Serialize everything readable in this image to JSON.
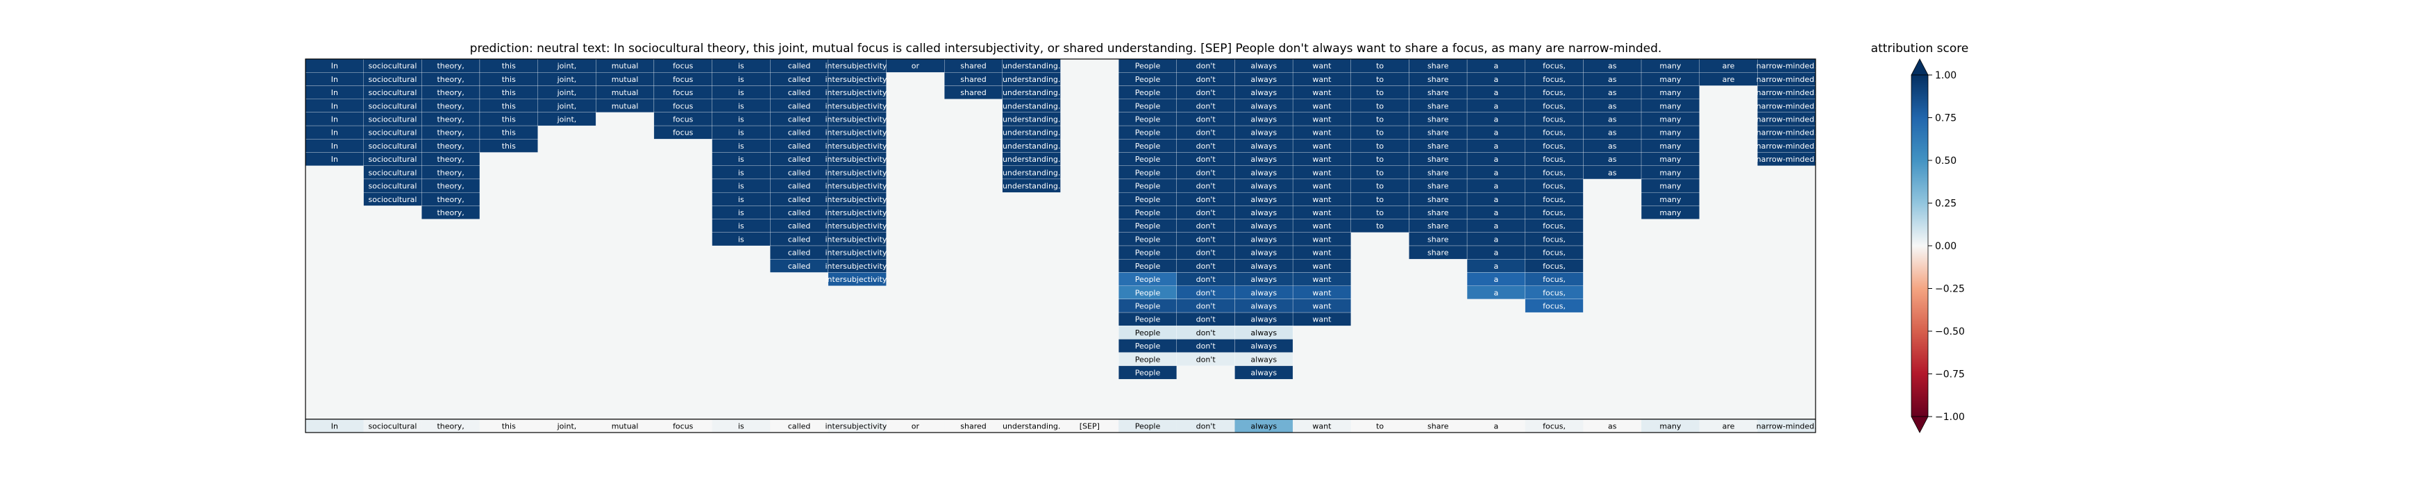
{
  "chart_data": {
    "type": "heatmap",
    "title": "prediction:  neutral     text:  In sociocultural theory, this joint, mutual focus is called intersubjectivity, or shared understanding. [SEP] People don't always want to share a focus, as many are narrow-minded.",
    "tokens": [
      "In",
      "sociocultural",
      "theory,",
      "this",
      "joint,",
      "mutual",
      "focus",
      "is",
      "called",
      "intersubjectivity,",
      "or",
      "shared",
      "understanding.",
      "[SEP]",
      "People",
      "don't",
      "always",
      "want",
      "to",
      "share",
      "a",
      "focus,",
      "as",
      "many",
      "are",
      "narrow-minded."
    ],
    "row_starts": [
      0,
      0,
      0,
      0,
      0,
      0,
      0,
      0,
      1,
      1,
      1,
      2,
      7,
      7,
      7,
      8,
      8,
      8,
      9,
      9,
      9,
      9,
      9,
      9,
      14,
      14,
      14,
      14
    ],
    "row_ends": [
      25,
      25,
      25,
      25,
      25,
      25,
      25,
      25,
      23,
      23,
      23,
      23,
      22,
      22,
      22,
      22,
      22,
      22,
      22,
      22,
      22,
      22,
      22,
      22,
      22,
      22,
      22,
      22
    ],
    "rows": [
      [
        0.95,
        0.95,
        0.95,
        0.95,
        0.95,
        0.95,
        0.95,
        0.95,
        0.95,
        0.95,
        0.95,
        0.95,
        0.95,
        0.0,
        0.95,
        0.95,
        0.95,
        0.95,
        0.95,
        0.95,
        0.95,
        0.95,
        0.95,
        0.95,
        0.95,
        0.95
      ],
      [
        0.95,
        0.95,
        0.95,
        0.95,
        0.95,
        0.95,
        0.95,
        0.95,
        0.95,
        0.95,
        0.0,
        0.95,
        0.95,
        0.0,
        0.95,
        0.95,
        0.95,
        0.95,
        0.95,
        0.95,
        0.95,
        0.95,
        0.95,
        0.95,
        0.95,
        0.95
      ],
      [
        0.95,
        0.95,
        0.95,
        0.95,
        0.95,
        0.95,
        0.95,
        0.95,
        0.95,
        0.95,
        0.0,
        0.95,
        0.95,
        0.0,
        0.95,
        0.95,
        0.95,
        0.95,
        0.95,
        0.95,
        0.95,
        0.95,
        0.95,
        0.95,
        0.0,
        0.95
      ],
      [
        0.95,
        0.95,
        0.95,
        0.95,
        0.95,
        0.95,
        0.95,
        0.95,
        0.95,
        0.95,
        0.0,
        0.0,
        0.95,
        0.0,
        0.95,
        0.95,
        0.95,
        0.95,
        0.95,
        0.95,
        0.95,
        0.95,
        0.95,
        0.95,
        0.0,
        0.95
      ],
      [
        0.95,
        0.95,
        0.95,
        0.95,
        0.95,
        0.0,
        0.95,
        0.95,
        0.95,
        0.95,
        0.0,
        0.0,
        0.95,
        0.0,
        0.95,
        0.95,
        0.95,
        0.95,
        0.95,
        0.95,
        0.95,
        0.95,
        0.95,
        0.95,
        0.0,
        0.95
      ],
      [
        0.95,
        0.95,
        0.95,
        0.95,
        0.0,
        0.0,
        0.95,
        0.95,
        0.95,
        0.95,
        0.0,
        0.0,
        0.95,
        0.0,
        0.95,
        0.95,
        0.95,
        0.95,
        0.95,
        0.95,
        0.95,
        0.95,
        0.95,
        0.95,
        0.0,
        0.95
      ],
      [
        0.95,
        0.95,
        0.95,
        0.95,
        0.0,
        0.0,
        0.0,
        0.95,
        0.95,
        0.95,
        0.0,
        0.0,
        0.95,
        0.0,
        0.95,
        0.95,
        0.95,
        0.95,
        0.95,
        0.95,
        0.95,
        0.95,
        0.95,
        0.95,
        0.0,
        0.95
      ],
      [
        0.95,
        0.95,
        0.95,
        0.0,
        0.0,
        0.0,
        0.0,
        0.95,
        0.95,
        0.95,
        0.0,
        0.0,
        0.95,
        0.0,
        0.95,
        0.95,
        0.95,
        0.95,
        0.95,
        0.95,
        0.95,
        0.95,
        0.95,
        0.95,
        0.0,
        0.95
      ],
      [
        0.0,
        0.95,
        0.95,
        0.0,
        0.0,
        0.0,
        0.0,
        0.95,
        0.95,
        0.95,
        0.0,
        0.0,
        0.95,
        0.0,
        0.95,
        0.95,
        0.95,
        0.95,
        0.95,
        0.95,
        0.95,
        0.95,
        0.95,
        0.95,
        0.0,
        0.95
      ],
      [
        0.0,
        0.95,
        0.95,
        0.0,
        0.0,
        0.0,
        0.0,
        0.95,
        0.95,
        0.95,
        0.0,
        0.0,
        0.95,
        0.0,
        0.95,
        0.95,
        0.95,
        0.95,
        0.95,
        0.95,
        0.95,
        0.95,
        0.0,
        0.95,
        0.0,
        0.95
      ],
      [
        0.0,
        0.95,
        0.95,
        0.0,
        0.0,
        0.0,
        0.0,
        0.95,
        0.95,
        0.95,
        0.0,
        0.0,
        0.0,
        0.0,
        0.95,
        0.95,
        0.95,
        0.95,
        0.95,
        0.95,
        0.95,
        0.95,
        0.0,
        0.95,
        0.0,
        0.95
      ],
      [
        0.0,
        0.0,
        0.95,
        0.0,
        0.0,
        0.0,
        0.0,
        0.95,
        0.95,
        0.95,
        0.0,
        0.0,
        0.0,
        0.0,
        0.95,
        0.95,
        0.95,
        0.95,
        0.95,
        0.95,
        0.95,
        0.95,
        0.0,
        0.95,
        0.0,
        0.95
      ],
      [
        0.0,
        0.0,
        0.0,
        0.0,
        0.0,
        0.0,
        0.0,
        0.95,
        0.95,
        0.95,
        0.0,
        0.0,
        0.0,
        0.0,
        0.95,
        0.95,
        0.95,
        0.95,
        0.95,
        0.95,
        0.95,
        0.95,
        0.0,
        0.95,
        0.0,
        0.95
      ],
      [
        0.0,
        0.0,
        0.0,
        0.0,
        0.0,
        0.0,
        0.0,
        0.95,
        0.95,
        0.95,
        0.0,
        0.0,
        0.0,
        0.0,
        0.95,
        0.95,
        0.95,
        0.95,
        0.0,
        0.95,
        0.95,
        0.95,
        0.0,
        0.95,
        0.0,
        0.95
      ],
      [
        0.0,
        0.0,
        0.0,
        0.0,
        0.0,
        0.0,
        0.0,
        0.0,
        0.95,
        0.95,
        0.0,
        0.0,
        0.0,
        0.0,
        0.95,
        0.95,
        0.95,
        0.95,
        0.0,
        0.95,
        0.95,
        0.95,
        0.0,
        0.95,
        0.0,
        0.95
      ],
      [
        0.0,
        0.0,
        0.0,
        0.0,
        0.0,
        0.0,
        0.0,
        0.0,
        0.9,
        0.95,
        0.0,
        0.0,
        0.0,
        0.0,
        0.95,
        0.95,
        0.95,
        0.95,
        0.0,
        0.0,
        0.9,
        0.95,
        0.0,
        0.95,
        0.0,
        0.95
      ],
      [
        0.0,
        0.0,
        0.0,
        0.0,
        0.0,
        0.0,
        0.0,
        0.0,
        0.0,
        0.8,
        0.0,
        0.0,
        0.0,
        0.0,
        0.7,
        0.9,
        0.9,
        0.9,
        0.0,
        0.0,
        0.75,
        0.8,
        0.0,
        0.75,
        0.0,
        0.95
      ],
      [
        0.0,
        0.0,
        0.0,
        0.0,
        0.0,
        0.0,
        0.0,
        0.0,
        0.0,
        0.0,
        0.0,
        0.0,
        0.0,
        0.0,
        0.6,
        0.8,
        0.8,
        0.8,
        0.0,
        0.0,
        0.65,
        0.7,
        0.0,
        0.7,
        0.0,
        0.8
      ],
      [
        0.0,
        0.0,
        0.0,
        0.0,
        0.0,
        0.0,
        0.0,
        0.0,
        0.0,
        0.0,
        0.0,
        0.0,
        0.0,
        0.0,
        0.85,
        0.85,
        0.85,
        0.85,
        0.0,
        0.0,
        0.0,
        0.75,
        0.0,
        0.8,
        0.0,
        0.85
      ],
      [
        0.0,
        0.0,
        0.0,
        0.0,
        0.0,
        0.0,
        0.0,
        0.0,
        0.0,
        0.0,
        0.0,
        0.0,
        0.0,
        0.0,
        0.95,
        0.95,
        0.95,
        0.95,
        0.0,
        0.0,
        0.0,
        0.0,
        0.0,
        0.95,
        0.0,
        0.95
      ],
      [
        0.0,
        0.0,
        0.0,
        0.0,
        0.0,
        0.0,
        0.0,
        0.0,
        0.0,
        0.0,
        0.0,
        0.0,
        0.0,
        0.0,
        0.08,
        0.08,
        0.08,
        0.0,
        0.0,
        0.0,
        0.0,
        0.0,
        0.0,
        0.1,
        0.0,
        0.08
      ],
      [
        0.0,
        0.0,
        0.0,
        0.0,
        0.0,
        0.0,
        0.0,
        0.0,
        0.0,
        0.0,
        0.0,
        0.0,
        0.0,
        0.0,
        0.95,
        0.95,
        0.95,
        0.0,
        0.0,
        0.0,
        0.0,
        0.0,
        0.0,
        0.95,
        0.0,
        0.0
      ],
      [
        0.0,
        0.0,
        0.0,
        0.0,
        0.0,
        0.0,
        0.0,
        0.0,
        0.0,
        0.0,
        0.0,
        0.0,
        0.0,
        0.0,
        0.05,
        0.05,
        0.05,
        0.0,
        0.0,
        0.0,
        0.0,
        0.0,
        0.0,
        0.0,
        0.0,
        0.0
      ],
      [
        0.0,
        0.0,
        0.0,
        0.0,
        0.0,
        0.0,
        0.0,
        0.0,
        0.0,
        0.0,
        0.0,
        0.0,
        0.0,
        0.0,
        0.95,
        0.0,
        0.95,
        0.0,
        0.0,
        0.0,
        0.0,
        0.0,
        0.0,
        0.0,
        0.0,
        0.0
      ],
      [
        0.0,
        0.0,
        0.0,
        0.0,
        0.0,
        0.0,
        0.0,
        0.0,
        0.0,
        0.0,
        0.0,
        0.0,
        0.0,
        0.0,
        0.0,
        0.0,
        0.0,
        0.0,
        0.0,
        0.0,
        0.0,
        0.0,
        0.0,
        0.0,
        0.0,
        0.0
      ],
      [
        0.0,
        0.0,
        0.0,
        0.0,
        0.0,
        0.0,
        0.0,
        0.0,
        0.0,
        0.0,
        0.0,
        0.0,
        0.0,
        0.0,
        0.0,
        0.0,
        0.0,
        0.0,
        0.0,
        0.0,
        0.0,
        0.0,
        0.0,
        0.0,
        0.0,
        0.0
      ],
      [
        0.0,
        0.0,
        0.0,
        0.0,
        0.0,
        0.0,
        0.0,
        0.0,
        0.0,
        0.0,
        0.0,
        0.0,
        0.0,
        0.0,
        0.0,
        0.0,
        0.0,
        0.0,
        0.0,
        0.0,
        0.0,
        0.0,
        0.0,
        0.0,
        0.0,
        0.0
      ],
      [
        0.05,
        0.02,
        0.02,
        0.0,
        0.0,
        0.0,
        0.0,
        0.02,
        0.0,
        0.02,
        0.0,
        0.0,
        0.0,
        0.0,
        0.05,
        0.05,
        0.35,
        0.02,
        0.0,
        0.0,
        0.0,
        0.02,
        0.0,
        0.05,
        0.02,
        0.05
      ]
    ],
    "colorbar": {
      "label": "attribution score",
      "vmin": -1.0,
      "vmax": 1.0,
      "ticks": [
        1.0,
        0.75,
        0.5,
        0.25,
        0.0,
        -0.25,
        -0.5,
        -0.75,
        -1.0
      ],
      "tick_labels": [
        "1.00",
        "0.75",
        "0.50",
        "0.25",
        "0.00",
        "−0.25",
        "−0.50",
        "−0.75",
        "−1.00"
      ],
      "colormap": "RdBu"
    },
    "colors": {
      "empty": "#f4f6f6",
      "strong_positive": "#08306b",
      "neutral": "#f7f7f7",
      "strong_negative": "#67001f"
    }
  }
}
